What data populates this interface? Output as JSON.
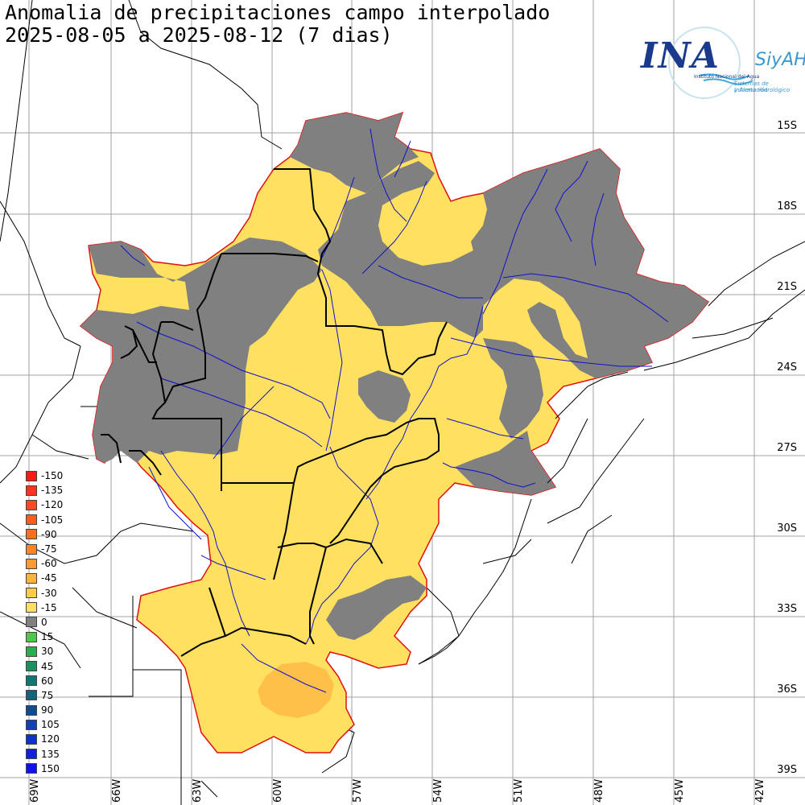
{
  "title": {
    "line1": "Anomalia de precipitaciones campo interpolado",
    "line2": "2025-08-05 a 2025-08-12 (7 dias)"
  },
  "logo": {
    "abbr": "INA",
    "name": "SiyAH",
    "line1": "Instituto Nacional del Agua",
    "line2": "Sistemas de Información",
    "line3": "y Alerta Hidrológico"
  },
  "lat_labels": [
    "15S",
    "18S",
    "21S",
    "24S",
    "27S",
    "30S",
    "33S",
    "36S",
    "39S"
  ],
  "lon_labels": [
    "69W",
    "66W",
    "63W",
    "60W",
    "57W",
    "54W",
    "51W",
    "48W",
    "45W",
    "42W"
  ],
  "legend": [
    {
      "label": "-150",
      "color": "#ff1a1a"
    },
    {
      "label": "-135",
      "color": "#ff3320"
    },
    {
      "label": "-120",
      "color": "#ff4a20"
    },
    {
      "label": "-105",
      "color": "#ff5c1e"
    },
    {
      "label": "-90",
      "color": "#ff6e1e"
    },
    {
      "label": "-75",
      "color": "#ff8424"
    },
    {
      "label": "-60",
      "color": "#ff9a30"
    },
    {
      "label": "-45",
      "color": "#ffb43c"
    },
    {
      "label": "-30",
      "color": "#ffcc48"
    },
    {
      "label": "-15",
      "color": "#ffe060"
    },
    {
      "label": "0",
      "color": "#808080"
    },
    {
      "label": "15",
      "color": "#4cc84c"
    },
    {
      "label": "30",
      "color": "#28b050"
    },
    {
      "label": "45",
      "color": "#189060"
    },
    {
      "label": "60",
      "color": "#107870"
    },
    {
      "label": "75",
      "color": "#106478"
    },
    {
      "label": "90",
      "color": "#104c90"
    },
    {
      "label": "105",
      "color": "#1040b4"
    },
    {
      "label": "120",
      "color": "#1030d0"
    },
    {
      "label": "135",
      "color": "#1020e0"
    },
    {
      "label": "150",
      "color": "#1010f0"
    }
  ],
  "colors": {
    "negative_fill": "#ffe060",
    "negative_strong_fill": "#ffc04a",
    "zero_fill": "#808080",
    "basin_outline": "#e01010",
    "rivers": "#1010d0",
    "borders": "#000000",
    "grid": "#a0a0a0"
  }
}
